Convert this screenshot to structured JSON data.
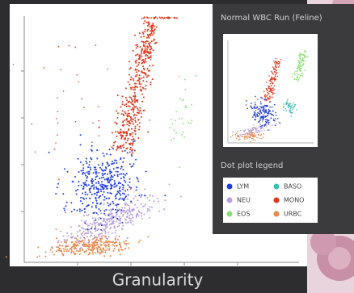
{
  "plot": {
    "x_axis_label": "Granularity"
  },
  "panel": {
    "title": "Normal WBC Run (Feline)",
    "legend_title": "Dot plot legend",
    "legend": [
      {
        "label": "LYM",
        "color": "#1e3ce6"
      },
      {
        "label": "BASO",
        "color": "#3cbfb0"
      },
      {
        "label": "NEU",
        "color": "#b9a0e0"
      },
      {
        "label": "MONO",
        "color": "#e0361a"
      },
      {
        "label": "EOS",
        "color": "#86e070"
      },
      {
        "label": "URBC",
        "color": "#e8884a"
      }
    ]
  }
}
